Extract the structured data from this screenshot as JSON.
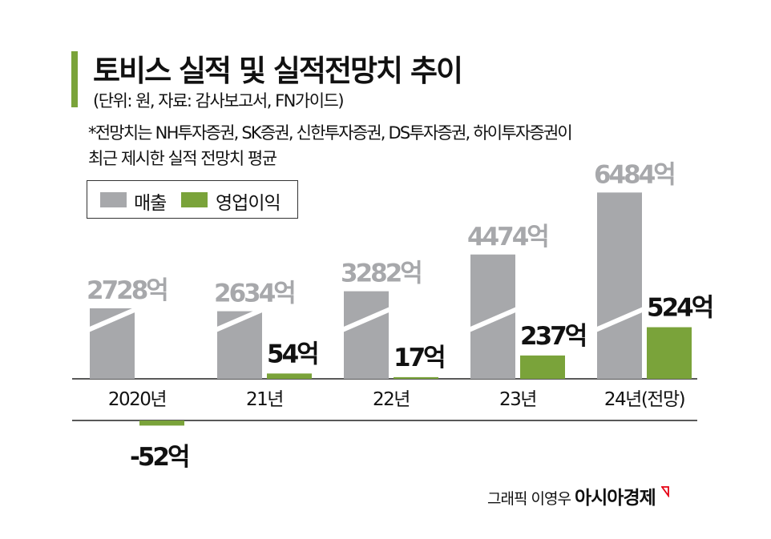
{
  "title": "토비스 실적 및 실적전망치 추이",
  "unit_note": "(단위: 원, 자료: 감사보고서, FN가이드)",
  "note_line1": "*전망치는 NH투자증권, SK증권, 신한투자증권, DS투자증권, 하이투자증권이",
  "note_line2": "최근 제시한  실적 전망치 평균",
  "credit": "그래픽 이영우",
  "brand": "아시아경제",
  "colors": {
    "revenue": "#a7a8ab",
    "operating_profit": "#7aa33a",
    "accent": "#7aa33a",
    "brand_mark": "#e60012"
  },
  "chart_data": {
    "type": "bar",
    "title": "토비스 실적 및 실적전망치 추이",
    "categories": [
      "2020년",
      "21년",
      "22년",
      "23년",
      "24년(전망)"
    ],
    "axis_broken": true,
    "legend_position": "top-left",
    "grid": false,
    "series": [
      {
        "name": "매출",
        "values": [
          2728,
          2634,
          3282,
          4474,
          6484
        ],
        "labels": [
          "2728억",
          "2634억",
          "3282억",
          "4474억",
          "6484억"
        ]
      },
      {
        "name": "영업이익",
        "values": [
          -52,
          54,
          17,
          237,
          524
        ],
        "labels": [
          "-52억",
          "54억",
          "17억",
          "237억",
          "524억"
        ]
      }
    ]
  }
}
